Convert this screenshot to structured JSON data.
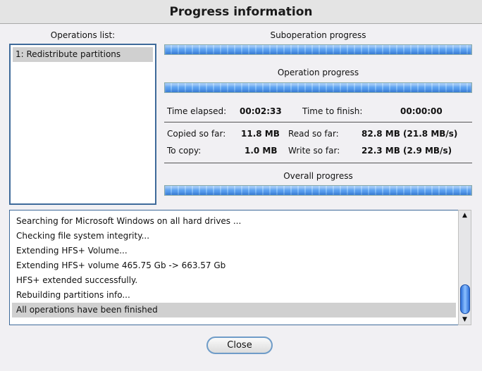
{
  "title": "Progress information",
  "operations": {
    "label": "Operations list:",
    "items": [
      "1: Redistribute partitions"
    ]
  },
  "progress": {
    "suboperation_label": "Suboperation progress",
    "suboperation_value": 1.0,
    "operation_label": "Operation progress",
    "operation_value": 1.0,
    "overall_label": "Overall progress",
    "overall_value": 1.0
  },
  "stats": {
    "time_elapsed_label": "Time elapsed:",
    "time_elapsed": "00:02:33",
    "time_to_finish_label": "Time to finish:",
    "time_to_finish": "00:00:00",
    "copied_label": "Copied so far:",
    "copied": "11.8 MB",
    "read_label": "Read so far:",
    "read": "82.8 MB (21.8 MB/s)",
    "to_copy_label": "To copy:",
    "to_copy": "1.0 MB",
    "write_label": "Write so far:",
    "write": "22.3 MB (2.9 MB/s)"
  },
  "log": [
    "Searching for Microsoft Windows on all hard drives ...",
    "Checking file system integrity...",
    "Extending HFS+ Volume...",
    "Extending HFS+ volume 465.75 Gb -> 663.57 Gb",
    "HFS+ extended successfully.",
    "Rebuilding partitions info...",
    "All operations have been finished"
  ],
  "close_label": "Close",
  "colors": {
    "progress": "#5aa0f0",
    "border_accent": "#3e6a9a"
  }
}
